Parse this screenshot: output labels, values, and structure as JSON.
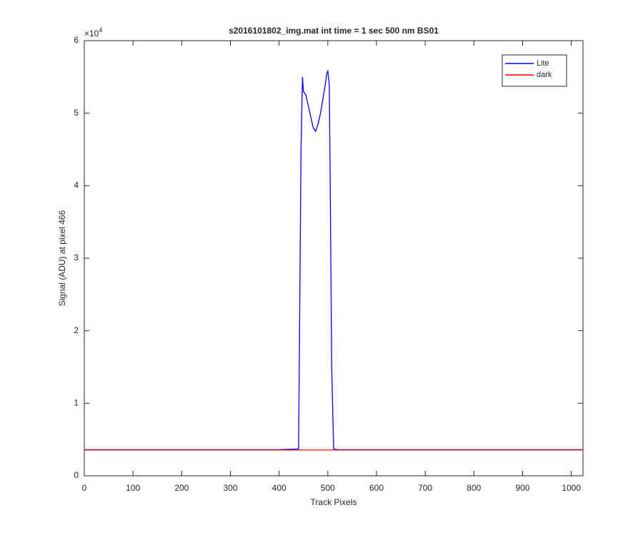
{
  "chart_data": {
    "type": "line",
    "title": "s2016101802_img.mat int time = 1 sec  500 nm BS01",
    "x_label": "Track Pixels",
    "y_label": "Signal (ADU) at pixel 466",
    "y_multiplier": {
      "base": "×10",
      "exponent": "4"
    },
    "x": [
      0,
      100,
      200,
      300,
      400,
      440,
      442,
      445,
      448,
      450,
      455,
      460,
      465,
      470,
      475,
      480,
      485,
      490,
      495,
      498,
      500,
      503,
      505,
      508,
      512,
      520,
      600,
      700,
      800,
      900,
      1000,
      1024
    ],
    "series": [
      {
        "name": "Lite",
        "color": "#0000ff",
        "values": [
          0.36,
          0.36,
          0.36,
          0.36,
          0.36,
          0.37,
          2.0,
          4.5,
          5.5,
          5.3,
          5.25,
          5.1,
          4.95,
          4.8,
          4.75,
          4.85,
          5.0,
          5.2,
          5.4,
          5.55,
          5.58,
          5.4,
          4.0,
          1.5,
          0.37,
          0.36,
          0.36,
          0.36,
          0.36,
          0.36,
          0.36,
          0.36
        ]
      },
      {
        "name": "dark",
        "color": "#ff0000",
        "values": [
          0.355,
          0.355,
          0.355,
          0.355,
          0.355,
          0.355,
          0.355,
          0.355,
          0.355,
          0.355,
          0.355,
          0.355,
          0.355,
          0.355,
          0.355,
          0.355,
          0.355,
          0.355,
          0.355,
          0.355,
          0.355,
          0.355,
          0.355,
          0.355,
          0.355,
          0.355,
          0.355,
          0.355,
          0.355,
          0.355,
          0.355,
          0.355
        ]
      }
    ],
    "xlim": [
      0,
      1024
    ],
    "xticks": [
      0,
      100,
      200,
      300,
      400,
      500,
      600,
      700,
      800,
      900,
      1000
    ],
    "ylim": [
      0,
      6
    ],
    "yticks": [
      0,
      1,
      2,
      3,
      4,
      5,
      6
    ],
    "grid": false,
    "legend": "top-right"
  }
}
